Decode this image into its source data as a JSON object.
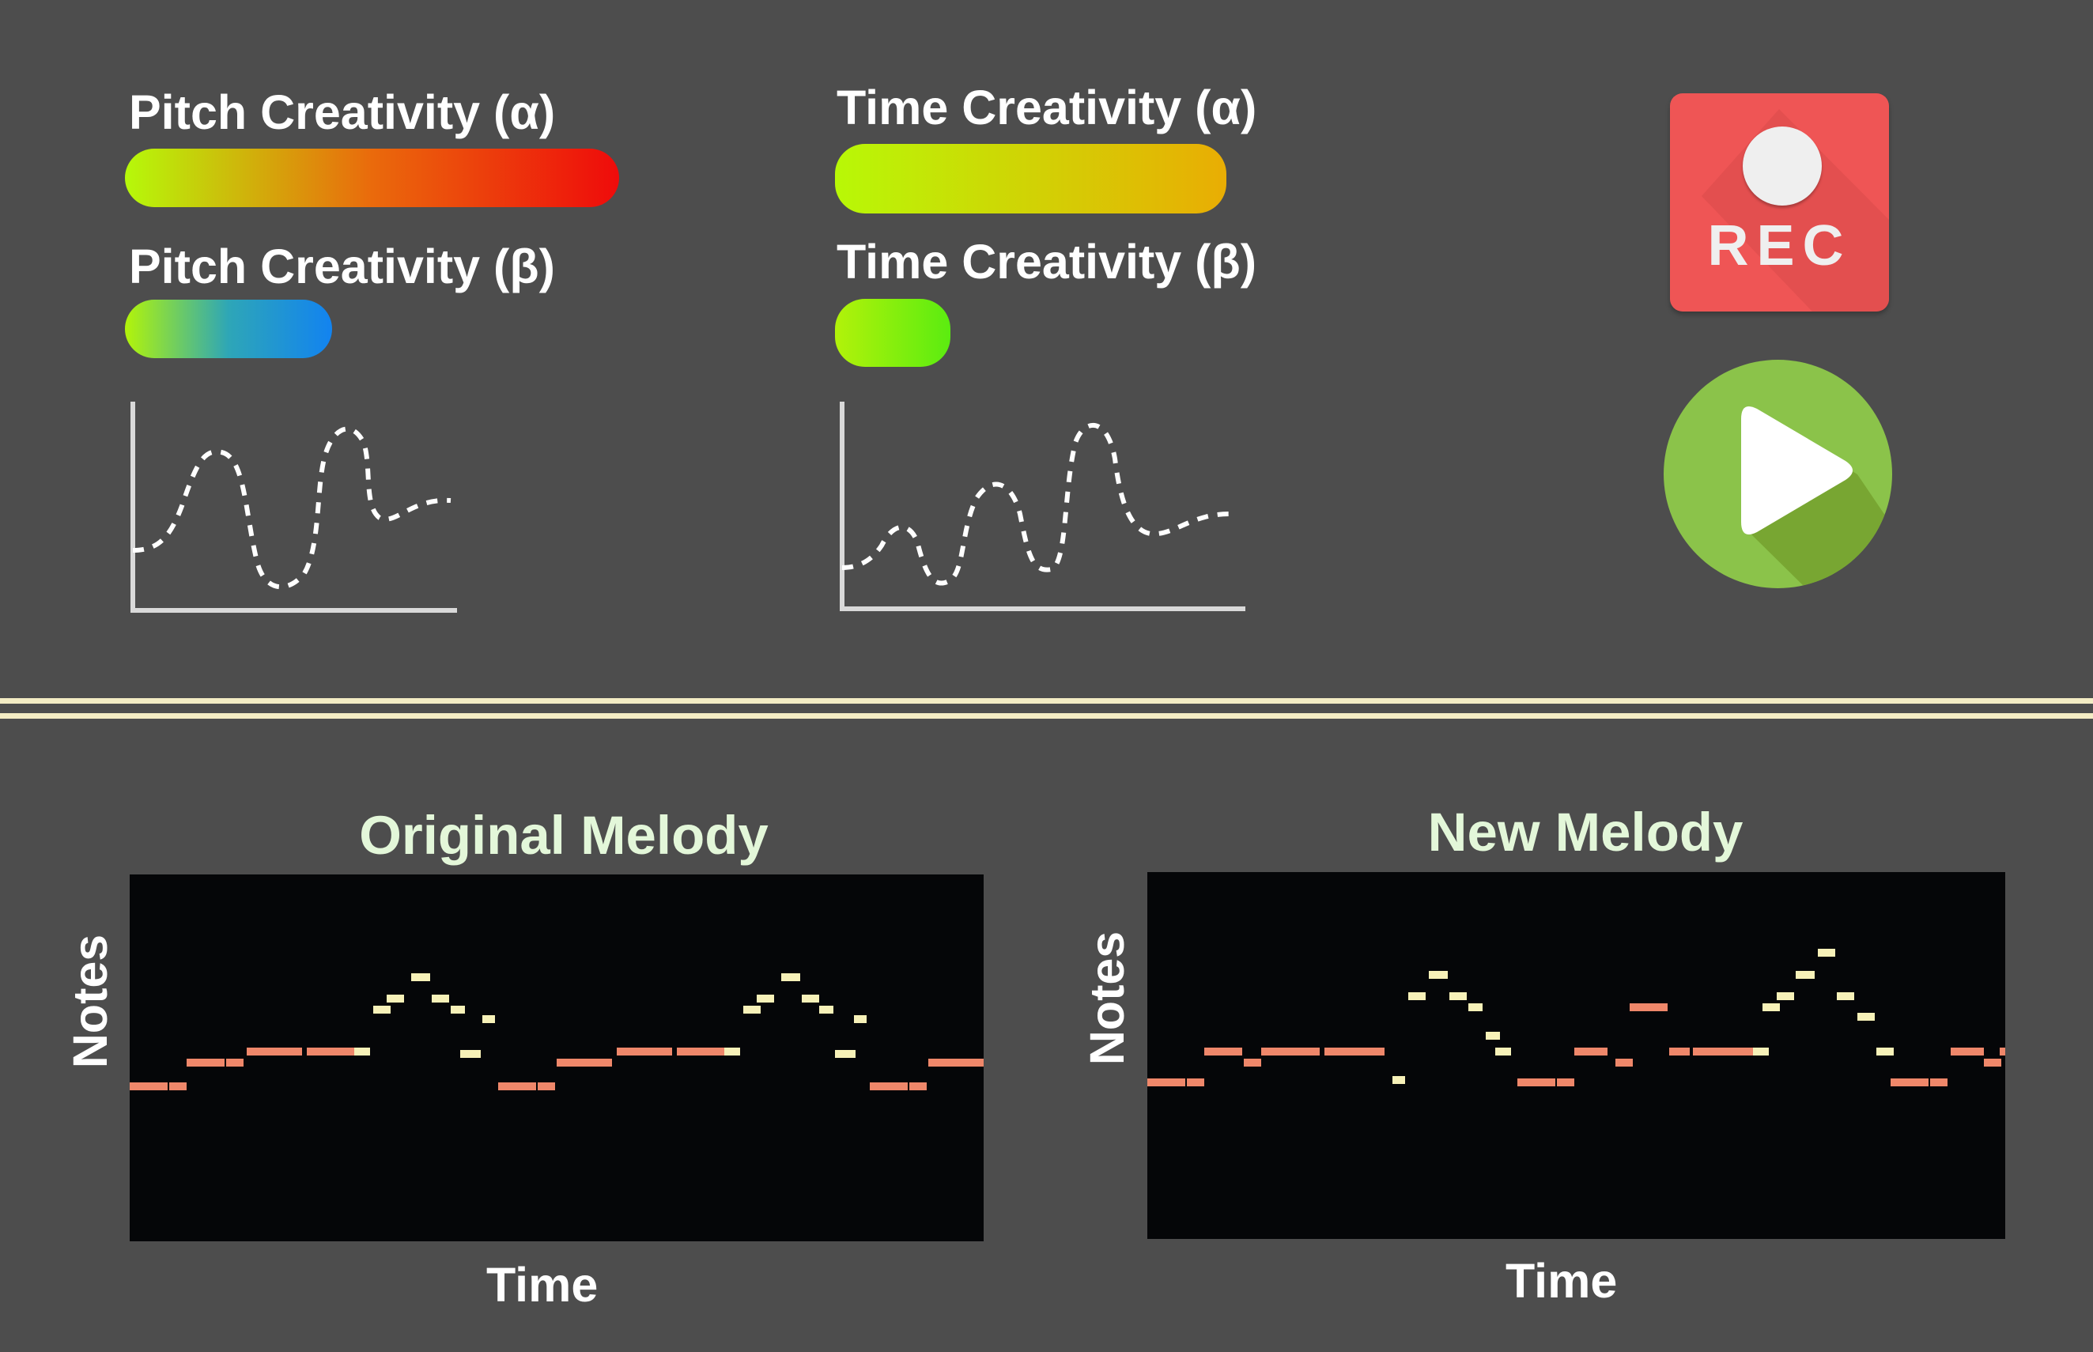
{
  "controls": {
    "pitch_alpha": {
      "label": "Pitch Creativity (α)",
      "level": 1.0,
      "gradient": [
        "#b6f90a",
        "#ea6a0c",
        "#ef0b0b"
      ]
    },
    "pitch_beta": {
      "label": "Pitch Creativity (β)",
      "level": 0.42,
      "gradient": [
        "#b2f40a",
        "#2ea6b7",
        "#1283f0"
      ]
    },
    "time_alpha": {
      "label": "Time Creativity (α)",
      "level": 1.0,
      "gradient": [
        "#b8f806",
        "#e9ad04"
      ]
    },
    "time_beta": {
      "label": "Time Creativity (β)",
      "level": 0.29,
      "gradient": [
        "#b2f20a",
        "#5bec10"
      ]
    }
  },
  "buttons": {
    "record": {
      "label": "REC",
      "color": "#ef5555"
    },
    "play": {
      "icon": "play-icon",
      "color": "#8bc34a"
    }
  },
  "original": {
    "title": "Original Melody",
    "ylabel": "Notes",
    "xlabel": "Time"
  },
  "new": {
    "title": "New Melody",
    "ylabel": "Notes",
    "xlabel": "Time"
  },
  "colors": {
    "background": "#4d4d4d",
    "divider": "#f3ecc4",
    "low_note": "#ef876a",
    "high_note": "#f7f1b8",
    "roll_background": "#050608",
    "title": "#e3f7d9"
  }
}
